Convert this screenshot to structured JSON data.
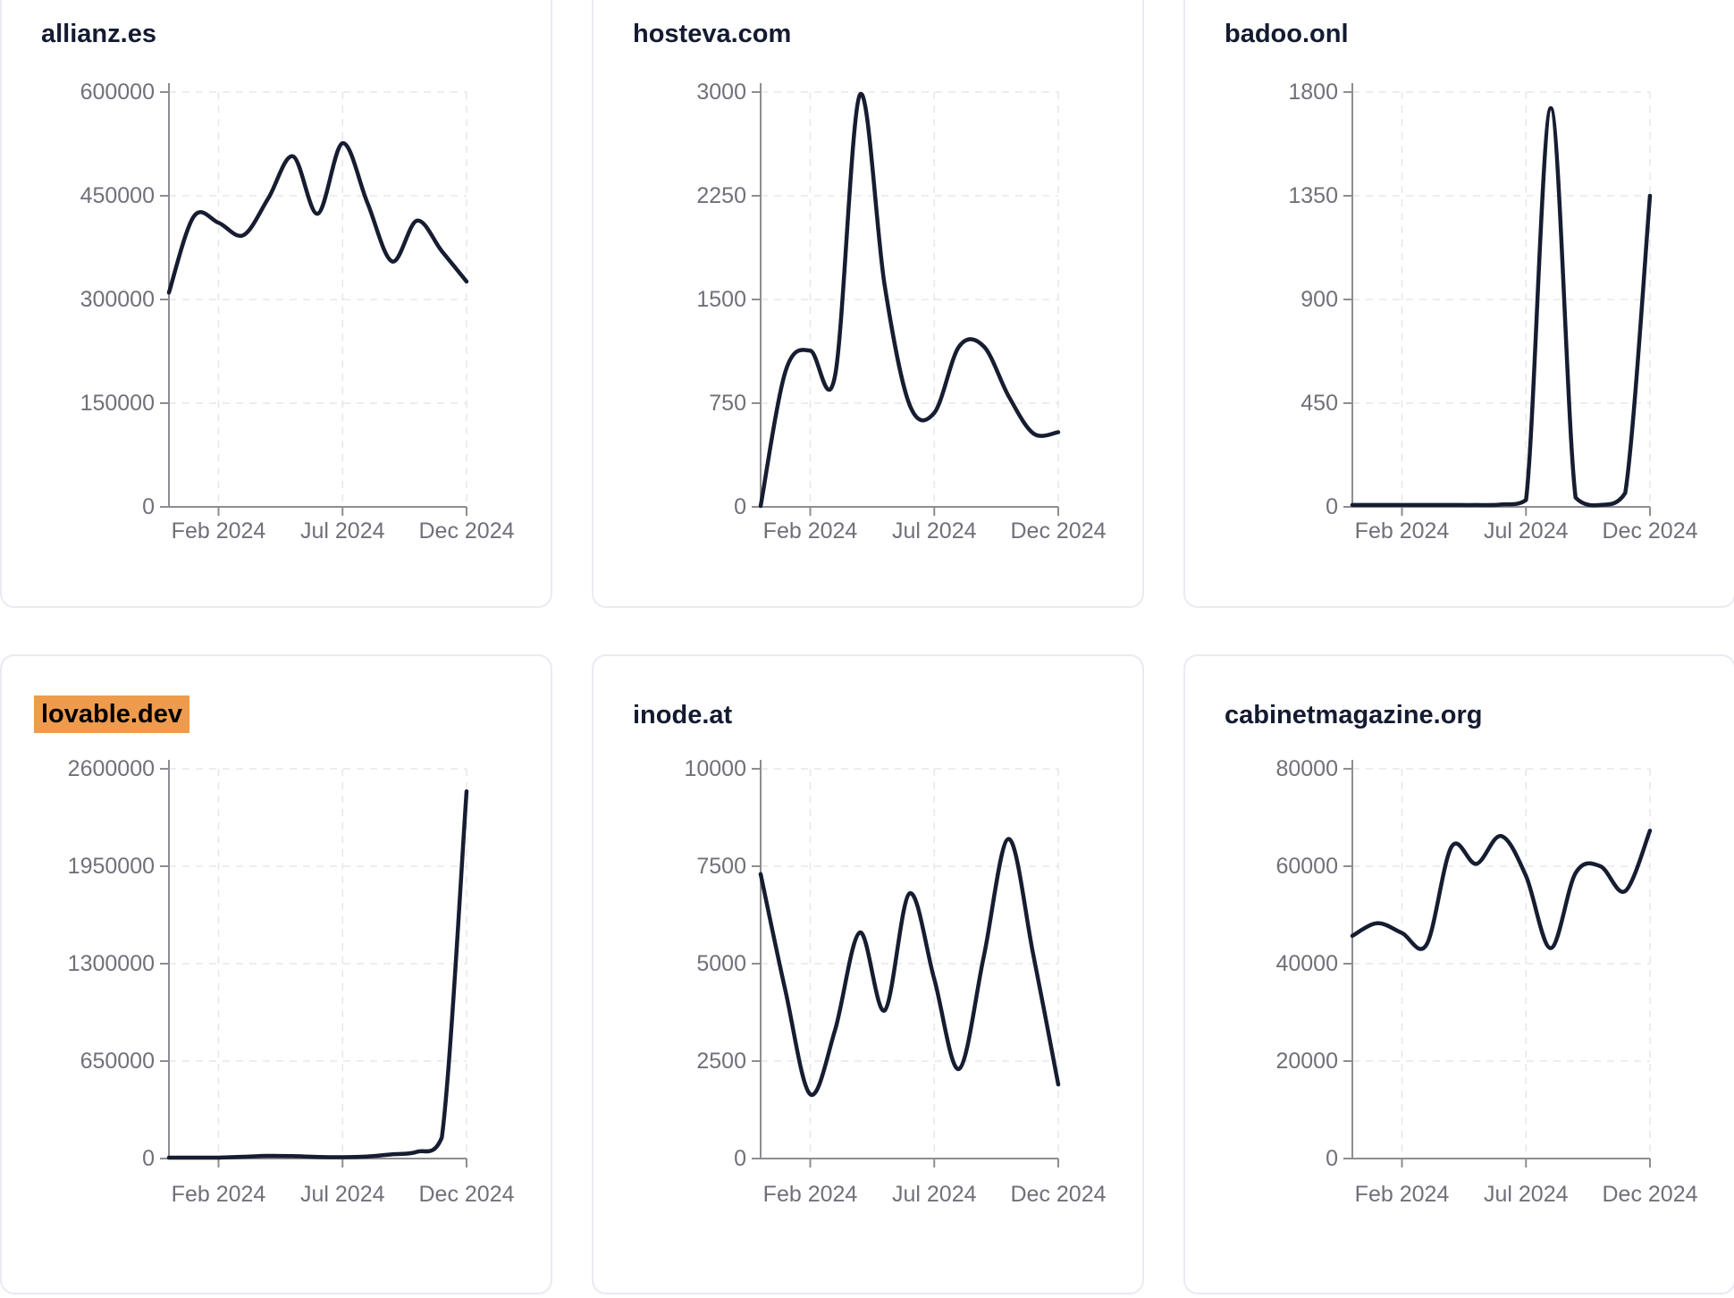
{
  "page": {
    "background": "#ffffff",
    "title_color": "#141b31",
    "tick_label_color": "#70707a",
    "axis_color": "#8d8d92",
    "grid_color": "#e7e7ea",
    "line_color": "#171d31",
    "card_border_color": "#e9ebf2",
    "highlight_color": "#ef9b4d"
  },
  "x_months": [
    "Dec 2023",
    "Jan 2024",
    "Feb 2024",
    "Mar 2024",
    "Apr 2024",
    "May 2024",
    "Jun 2024",
    "Jul 2024",
    "Aug 2024",
    "Sep 2024",
    "Oct 2024",
    "Nov 2024",
    "Dec 2024"
  ],
  "x_ticks": [
    {
      "label": "Feb 2024",
      "month_index": 2
    },
    {
      "label": "Jul 2024",
      "month_index": 7
    },
    {
      "label": "Dec 2024",
      "month_index": 12
    }
  ],
  "chart_data": [
    {
      "type": "line",
      "title": "allianz.es",
      "highlighted": false,
      "xlabel": "",
      "ylabel": "",
      "ylim": [
        0,
        600000
      ],
      "yticks": [
        0,
        150000,
        300000,
        450000,
        600000
      ],
      "x": [
        "Dec 2023",
        "Jan 2024",
        "Feb 2024",
        "Mar 2024",
        "Apr 2024",
        "May 2024",
        "Jun 2024",
        "Jul 2024",
        "Aug 2024",
        "Sep 2024",
        "Oct 2024",
        "Nov 2024",
        "Dec 2024"
      ],
      "values": [
        310000,
        420000,
        411000,
        393000,
        446000,
        507000,
        424000,
        526000,
        440000,
        355000,
        414000,
        370000,
        326000
      ]
    },
    {
      "type": "line",
      "title": "hosteva.com",
      "highlighted": false,
      "xlabel": "",
      "ylabel": "",
      "ylim": [
        0,
        3000
      ],
      "yticks": [
        0,
        750,
        1500,
        2250,
        3000
      ],
      "x": [
        "Dec 2023",
        "Jan 2024",
        "Feb 2024",
        "Mar 2024",
        "Apr 2024",
        "May 2024",
        "Jun 2024",
        "Jul 2024",
        "Aug 2024",
        "Sep 2024",
        "Oct 2024",
        "Nov 2024",
        "Dec 2024"
      ],
      "values": [
        0,
        980,
        1130,
        950,
        2980,
        1600,
        740,
        680,
        1160,
        1160,
        800,
        530,
        540
      ]
    },
    {
      "type": "line",
      "title": "badoo.onl",
      "highlighted": false,
      "xlabel": "",
      "ylabel": "",
      "ylim": [
        0,
        1800
      ],
      "yticks": [
        0,
        450,
        900,
        1350,
        1800
      ],
      "x": [
        "Dec 2023",
        "Jan 2024",
        "Feb 2024",
        "Mar 2024",
        "Apr 2024",
        "May 2024",
        "Jun 2024",
        "Jul 2024",
        "Aug 2024",
        "Sep 2024",
        "Oct 2024",
        "Nov 2024",
        "Dec 2024"
      ],
      "values": [
        8,
        8,
        8,
        8,
        8,
        8,
        10,
        30,
        1730,
        40,
        8,
        60,
        1350
      ]
    },
    {
      "type": "line",
      "title": "lovable.dev",
      "highlighted": true,
      "xlabel": "",
      "ylabel": "",
      "ylim": [
        0,
        2600000
      ],
      "yticks": [
        0,
        650000,
        1300000,
        1950000,
        2600000
      ],
      "x": [
        "Dec 2023",
        "Jan 2024",
        "Feb 2024",
        "Mar 2024",
        "Apr 2024",
        "May 2024",
        "Jun 2024",
        "Jul 2024",
        "Aug 2024",
        "Sep 2024",
        "Oct 2024",
        "Nov 2024",
        "Dec 2024"
      ],
      "values": [
        3000,
        3000,
        6000,
        12000,
        18000,
        16000,
        11000,
        9000,
        14000,
        28000,
        45000,
        140000,
        2450000
      ]
    },
    {
      "type": "line",
      "title": "inode.at",
      "highlighted": false,
      "xlabel": "",
      "ylabel": "",
      "ylim": [
        0,
        10000
      ],
      "yticks": [
        0,
        2500,
        5000,
        7500,
        10000
      ],
      "x": [
        "Dec 2023",
        "Jan 2024",
        "Feb 2024",
        "Mar 2024",
        "Apr 2024",
        "May 2024",
        "Jun 2024",
        "Jul 2024",
        "Aug 2024",
        "Sep 2024",
        "Oct 2024",
        "Nov 2024",
        "Dec 2024"
      ],
      "values": [
        7300,
        4300,
        1650,
        3300,
        5800,
        3800,
        6800,
        4600,
        2300,
        5200,
        8200,
        5200,
        1900
      ]
    },
    {
      "type": "line",
      "title": "cabinetmagazine.org",
      "highlighted": false,
      "xlabel": "",
      "ylabel": "",
      "ylim": [
        0,
        80000
      ],
      "yticks": [
        0,
        20000,
        40000,
        60000,
        80000
      ],
      "x": [
        "Dec 2023",
        "Jan 2024",
        "Feb 2024",
        "Mar 2024",
        "Apr 2024",
        "May 2024",
        "Jun 2024",
        "Jul 2024",
        "Aug 2024",
        "Sep 2024",
        "Oct 2024",
        "Nov 2024",
        "Dec 2024"
      ],
      "values": [
        45700,
        48300,
        46300,
        44000,
        64000,
        60500,
        66200,
        58000,
        43200,
        58600,
        60000,
        54900,
        67300
      ]
    }
  ]
}
